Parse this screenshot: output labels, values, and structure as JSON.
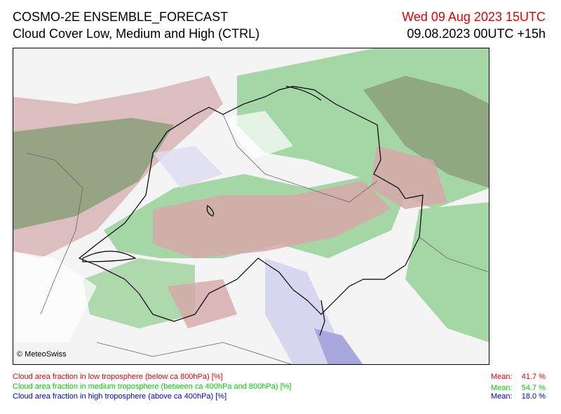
{
  "header": {
    "title": "COSMO-2E ENSEMBLE_FORECAST",
    "subtitle": "Cloud Cover Low, Medium and High (CTRL)",
    "valid_time": "Wed 09 Aug 2023 15UTC",
    "run_time": "09.08.2023 00UTC +15h"
  },
  "map": {
    "credit": "© MeteoSwiss"
  },
  "legend": [
    {
      "text": "Cloud area fraction in low troposphere (below ca 800hPa) [%]",
      "mean_label": "Mean:",
      "mean": "41.7 %"
    },
    {
      "text": "Cloud area fraction in medium troposphere (between ca 400hPa and 800hPa) [%]",
      "mean_label": "Mean:",
      "mean": "54.7 %"
    },
    {
      "text": "Cloud area fraction in high troposphere (above ca 400hPa) [%]",
      "mean_label": "Mean:",
      "mean": "18.0 %"
    }
  ]
}
